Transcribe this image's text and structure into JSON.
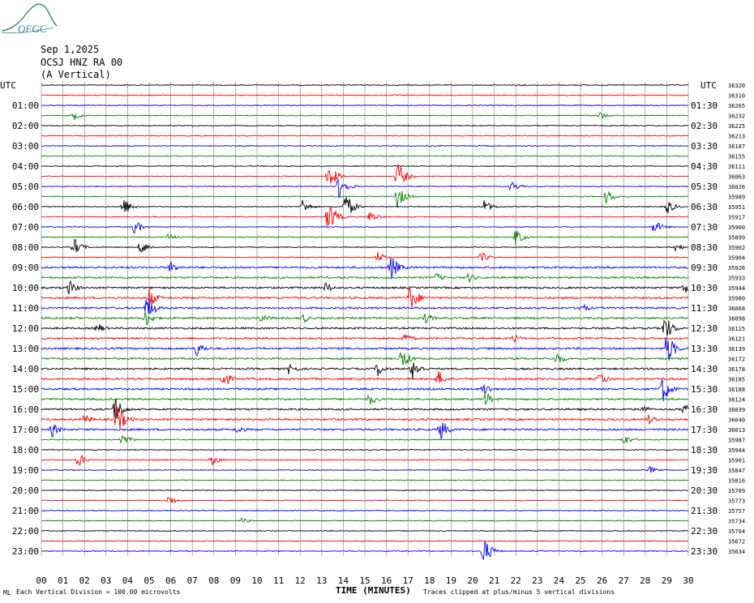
{
  "header": {
    "logo_text": "OFGC",
    "date": "Sep 1,2025",
    "station": "OCSJ HNZ RA 00",
    "component": "(A Vertical)"
  },
  "colors": {
    "trace_cycle": [
      "#000000",
      "#ff0000",
      "#0000ff",
      "#008000"
    ],
    "gridline": "#808080",
    "logo": "#2f8f4f"
  },
  "chart_data": {
    "type": "line",
    "title": "",
    "xlabel": "TIME (MINUTES)",
    "ylabel": "UTC",
    "left_axis_label": "UTC",
    "right_axis_label": "UTC",
    "xlim": [
      0,
      30
    ],
    "x_ticks": [
      "00",
      "01",
      "02",
      "03",
      "04",
      "05",
      "06",
      "07",
      "08",
      "09",
      "10",
      "11",
      "12",
      "13",
      "14",
      "15",
      "16",
      "17",
      "18",
      "19",
      "20",
      "21",
      "22",
      "23",
      "24",
      "25",
      "26",
      "27",
      "28",
      "29",
      "30"
    ],
    "left_labels": [
      "",
      "01:00",
      "02:00",
      "03:00",
      "04:00",
      "05:00",
      "06:00",
      "07:00",
      "08:00",
      "09:00",
      "10:00",
      "11:00",
      "12:00",
      "13:00",
      "14:00",
      "15:00",
      "16:00",
      "17:00",
      "18:00",
      "19:00",
      "20:00",
      "21:00",
      "22:00",
      "23:00"
    ],
    "right_labels": [
      "",
      "01:30",
      "02:30",
      "03:30",
      "04:30",
      "05:30",
      "06:30",
      "07:30",
      "08:30",
      "09:30",
      "10:30",
      "11:30",
      "12:30",
      "13:30",
      "14:30",
      "15:30",
      "16:30",
      "17:30",
      "18:30",
      "19:30",
      "20:30",
      "21:30",
      "22:30",
      "23:30"
    ],
    "trace_offsets": [
      "36320",
      "36310",
      "36265",
      "36232",
      "36225",
      "36213",
      "36187",
      "36155",
      "36111",
      "36063",
      "36026",
      "35989",
      "35951",
      "35917",
      "35900",
      "35899",
      "35902",
      "35904",
      "35926",
      "35933",
      "35944",
      "35980",
      "36068",
      "36098",
      "36115",
      "36121",
      "36139",
      "36172",
      "36178",
      "36185",
      "36188",
      "36124",
      "36039",
      "36040",
      "36013",
      "35987",
      "35944",
      "35901",
      "35847",
      "35816",
      "35789",
      "35773",
      "35757",
      "35734",
      "35704",
      "35672",
      "35634"
    ],
    "events": [
      {
        "trace": 3,
        "x": 1.5,
        "amp": 0.5
      },
      {
        "trace": 3,
        "x": 25.9,
        "amp": 0.4
      },
      {
        "trace": 9,
        "x": 13.3,
        "amp": 1.5
      },
      {
        "trace": 9,
        "x": 16.5,
        "amp": 1.6
      },
      {
        "trace": 10,
        "x": 13.8,
        "amp": 1.3
      },
      {
        "trace": 10,
        "x": 21.8,
        "amp": 0.6
      },
      {
        "trace": 11,
        "x": 16.5,
        "amp": 1.2
      },
      {
        "trace": 11,
        "x": 26.2,
        "amp": 0.8
      },
      {
        "trace": 12,
        "x": 3.8,
        "amp": 1.0
      },
      {
        "trace": 12,
        "x": 12.1,
        "amp": 0.8
      },
      {
        "trace": 12,
        "x": 14.1,
        "amp": 1.5
      },
      {
        "trace": 12,
        "x": 20.5,
        "amp": 0.8
      },
      {
        "trace": 12,
        "x": 29.0,
        "amp": 0.8
      },
      {
        "trace": 13,
        "x": 13.3,
        "amp": 1.8
      },
      {
        "trace": 13,
        "x": 15.2,
        "amp": 0.7
      },
      {
        "trace": 14,
        "x": 4.3,
        "amp": 0.8
      },
      {
        "trace": 14,
        "x": 28.4,
        "amp": 0.8
      },
      {
        "trace": 15,
        "x": 22.0,
        "amp": 0.9
      },
      {
        "trace": 15,
        "x": 5.9,
        "amp": 0.4
      },
      {
        "trace": 16,
        "x": 1.5,
        "amp": 1.0
      },
      {
        "trace": 16,
        "x": 4.6,
        "amp": 0.8
      },
      {
        "trace": 16,
        "x": 29.4,
        "amp": 0.5
      },
      {
        "trace": 17,
        "x": 15.6,
        "amp": 0.6
      },
      {
        "trace": 17,
        "x": 20.4,
        "amp": 0.6
      },
      {
        "trace": 18,
        "x": 6.0,
        "amp": 0.7
      },
      {
        "trace": 18,
        "x": 16.2,
        "amp": 1.4
      },
      {
        "trace": 19,
        "x": 18.3,
        "amp": 0.5
      },
      {
        "trace": 19,
        "x": 19.8,
        "amp": 0.5
      },
      {
        "trace": 20,
        "x": 1.3,
        "amp": 0.8
      },
      {
        "trace": 20,
        "x": 13.2,
        "amp": 0.6
      },
      {
        "trace": 20,
        "x": 29.8,
        "amp": 0.8
      },
      {
        "trace": 21,
        "x": 5.0,
        "amp": 1.0
      },
      {
        "trace": 21,
        "x": 17.1,
        "amp": 1.6
      },
      {
        "trace": 22,
        "x": 4.9,
        "amp": 1.4
      },
      {
        "trace": 22,
        "x": 25.0,
        "amp": 0.6
      },
      {
        "trace": 23,
        "x": 4.8,
        "amp": 1.0
      },
      {
        "trace": 23,
        "x": 10.2,
        "amp": 0.6
      },
      {
        "trace": 23,
        "x": 12.1,
        "amp": 0.6
      },
      {
        "trace": 23,
        "x": 17.8,
        "amp": 0.6
      },
      {
        "trace": 24,
        "x": 2.6,
        "amp": 0.6
      },
      {
        "trace": 24,
        "x": 28.9,
        "amp": 1.5
      },
      {
        "trace": 25,
        "x": 16.8,
        "amp": 0.7
      },
      {
        "trace": 25,
        "x": 21.9,
        "amp": 0.5
      },
      {
        "trace": 26,
        "x": 7.2,
        "amp": 0.9
      },
      {
        "trace": 26,
        "x": 29.0,
        "amp": 1.8
      },
      {
        "trace": 27,
        "x": 16.7,
        "amp": 1.2
      },
      {
        "trace": 27,
        "x": 23.9,
        "amp": 0.7
      },
      {
        "trace": 28,
        "x": 11.5,
        "amp": 0.7
      },
      {
        "trace": 28,
        "x": 15.6,
        "amp": 0.8
      },
      {
        "trace": 28,
        "x": 17.2,
        "amp": 1.2
      },
      {
        "trace": 29,
        "x": 8.4,
        "amp": 1.0
      },
      {
        "trace": 29,
        "x": 18.4,
        "amp": 0.9
      },
      {
        "trace": 29,
        "x": 25.9,
        "amp": 0.8
      },
      {
        "trace": 30,
        "x": 20.5,
        "amp": 0.8
      },
      {
        "trace": 30,
        "x": 28.8,
        "amp": 1.5
      },
      {
        "trace": 31,
        "x": 15.2,
        "amp": 0.7
      },
      {
        "trace": 31,
        "x": 20.6,
        "amp": 0.8
      },
      {
        "trace": 32,
        "x": 3.4,
        "amp": 1.5
      },
      {
        "trace": 32,
        "x": 27.8,
        "amp": 0.6
      },
      {
        "trace": 32,
        "x": 29.8,
        "amp": 0.6
      },
      {
        "trace": 33,
        "x": 3.5,
        "amp": 1.8
      },
      {
        "trace": 33,
        "x": 2.0,
        "amp": 0.6
      },
      {
        "trace": 33,
        "x": 28.1,
        "amp": 0.6
      },
      {
        "trace": 34,
        "x": 0.5,
        "amp": 0.8
      },
      {
        "trace": 34,
        "x": 18.5,
        "amp": 1.2
      },
      {
        "trace": 34,
        "x": 9.1,
        "amp": 0.5
      },
      {
        "trace": 35,
        "x": 3.7,
        "amp": 0.7
      },
      {
        "trace": 35,
        "x": 27.0,
        "amp": 0.6
      },
      {
        "trace": 37,
        "x": 1.7,
        "amp": 0.8
      },
      {
        "trace": 37,
        "x": 7.9,
        "amp": 0.6
      },
      {
        "trace": 38,
        "x": 28.2,
        "amp": 0.4
      },
      {
        "trace": 41,
        "x": 5.9,
        "amp": 0.6
      },
      {
        "trace": 43,
        "x": 9.3,
        "amp": 0.3
      },
      {
        "trace": 46,
        "x": 20.5,
        "amp": 1.5
      }
    ]
  },
  "footer": {
    "scale_note": "Each Vertical Division =  100.00 microvolts",
    "clip_note": "Traces clipped at plus/minus 5 vertical divisions",
    "corner_mark": "ML"
  }
}
